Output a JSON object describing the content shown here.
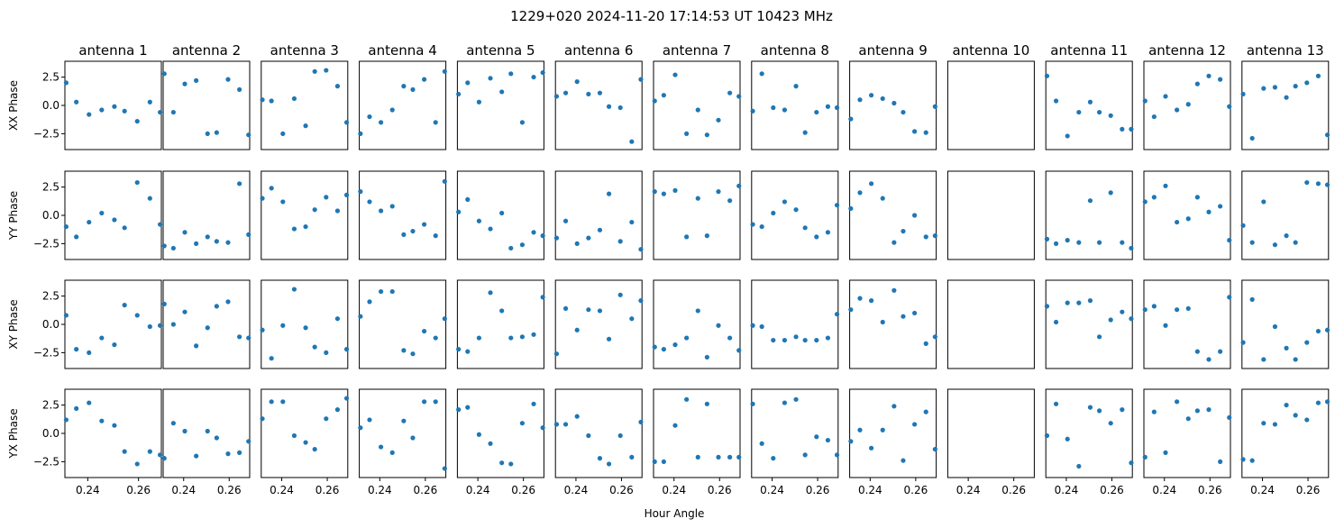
{
  "chart_data": {
    "type": "scatter",
    "title": "1229+020  2024-11-20 17:14:53 UT  10423 MHz",
    "xlabel": "Hour Angle",
    "xlim": [
      0.231,
      0.269
    ],
    "ylim": [
      -3.9,
      3.9
    ],
    "xticks": [
      0.24,
      0.26
    ],
    "xtick_labels": [
      "0.24",
      "0.26"
    ],
    "yticks": [
      2.5,
      0.0,
      -2.5
    ],
    "ytick_labels": [
      "2.5",
      "0.0",
      "−2.5"
    ],
    "x": [
      0.2315,
      0.2355,
      0.2405,
      0.2455,
      0.2505,
      0.2545,
      0.2595,
      0.2645,
      0.2685
    ],
    "point_color": "#1f77b4",
    "rows": [
      "XX Phase",
      "YY Phase",
      "XY Phase",
      "YX Phase"
    ],
    "columns": [
      "antenna 1",
      "antenna 2",
      "antenna 3",
      "antenna 4",
      "antenna 5",
      "antenna 6",
      "antenna 7",
      "antenna 8",
      "antenna 9",
      "antenna 10",
      "antenna 11",
      "antenna 12",
      "antenna 13"
    ],
    "series": {
      "XX Phase": [
        [
          2.0,
          0.3,
          -0.8,
          -0.4,
          -0.1,
          -0.5,
          -1.4,
          0.3,
          -0.6
        ],
        [
          2.8,
          -0.6,
          1.9,
          2.2,
          -2.5,
          -2.4,
          2.3,
          1.4,
          -2.6
        ],
        [
          0.5,
          0.4,
          -2.5,
          0.6,
          -1.8,
          3.0,
          3.1,
          1.7,
          -1.5
        ],
        [
          -2.5,
          -1.0,
          -1.5,
          -0.4,
          1.7,
          1.4,
          2.3,
          -1.5,
          3.0
        ],
        [
          1.0,
          2.0,
          0.3,
          2.4,
          1.2,
          2.8,
          -1.5,
          2.5,
          2.9
        ],
        [
          0.8,
          1.1,
          2.1,
          1.0,
          1.1,
          -0.1,
          -0.2,
          -3.2,
          2.3
        ],
        [
          0.4,
          0.9,
          2.7,
          -2.5,
          -0.4,
          -2.6,
          -1.3,
          1.1,
          0.8
        ],
        [
          -0.5,
          2.8,
          -0.2,
          -0.4,
          1.7,
          -2.4,
          -0.6,
          -0.1,
          -0.2
        ],
        [
          -1.2,
          0.5,
          0.9,
          0.6,
          0.2,
          -0.6,
          -2.3,
          -2.4,
          -0.1
        ],
        [],
        [
          2.6,
          0.4,
          -2.7,
          -0.6,
          0.3,
          -0.6,
          -0.9,
          -2.1,
          -2.1
        ],
        [
          0.4,
          -1.0,
          0.8,
          -0.4,
          0.1,
          1.9,
          2.6,
          2.3,
          -0.1
        ],
        [
          1.0,
          -2.9,
          1.5,
          1.6,
          0.7,
          1.7,
          2.0,
          2.6,
          -2.6
        ]
      ],
      "YY Phase": [
        [
          -1.0,
          -1.9,
          -0.6,
          0.2,
          -0.4,
          -1.1,
          2.9,
          1.5,
          -0.8
        ],
        [
          -2.7,
          -2.9,
          -1.5,
          -2.5,
          -1.9,
          -2.3,
          -2.4,
          2.8,
          -1.7
        ],
        [
          1.5,
          2.4,
          1.2,
          -1.2,
          -1.0,
          0.5,
          1.6,
          0.4,
          1.8
        ],
        [
          2.1,
          1.2,
          0.4,
          0.8,
          -1.7,
          -1.4,
          -0.8,
          -1.8,
          3.0
        ],
        [
          0.3,
          1.4,
          -0.5,
          -1.2,
          0.2,
          -2.9,
          -2.6,
          -1.5,
          -1.8
        ],
        [
          -2.0,
          -0.5,
          -2.5,
          -2.0,
          -1.3,
          1.9,
          -2.3,
          -0.6,
          -3.0
        ],
        [
          2.1,
          1.9,
          2.2,
          -1.9,
          1.5,
          -1.8,
          2.1,
          1.3,
          2.6
        ],
        [
          -0.8,
          -1.0,
          0.2,
          1.2,
          0.5,
          -1.1,
          -1.9,
          -1.5,
          0.9
        ],
        [
          0.6,
          2.0,
          2.8,
          1.5,
          -2.4,
          -1.4,
          0.0,
          -1.9,
          -1.8
        ],
        [],
        [
          -2.1,
          -2.5,
          -2.2,
          -2.4,
          1.3,
          -2.4,
          2.0,
          -2.4,
          -2.9
        ],
        [
          1.2,
          1.6,
          2.6,
          -0.6,
          -0.3,
          1.6,
          0.3,
          0.8,
          -2.2
        ],
        [
          -0.9,
          -2.4,
          1.2,
          -2.6,
          -1.8,
          -2.4,
          2.9,
          2.8,
          2.7
        ]
      ],
      "XY Phase": [
        [
          0.8,
          -2.2,
          -2.5,
          -1.2,
          -1.8,
          1.7,
          0.8,
          -0.2,
          -0.1
        ],
        [
          1.8,
          0.0,
          1.1,
          -1.9,
          -0.3,
          1.6,
          2.0,
          -1.1,
          -1.2
        ],
        [
          -0.5,
          -3.0,
          -0.1,
          3.1,
          -0.3,
          -2.0,
          -2.5,
          0.5,
          -2.2
        ],
        [
          0.7,
          2.0,
          2.9,
          2.9,
          -2.3,
          -2.6,
          -0.6,
          -1.2,
          0.5
        ],
        [
          -2.2,
          -2.4,
          -1.2,
          2.8,
          1.2,
          -1.2,
          -1.1,
          -0.9,
          2.4
        ],
        [
          -2.6,
          1.4,
          -0.5,
          1.3,
          1.2,
          -1.3,
          2.6,
          0.5,
          2.1
        ],
        [
          -2.0,
          -2.2,
          -1.8,
          -1.2,
          1.2,
          -2.9,
          -0.1,
          -1.2,
          -2.3
        ],
        [
          -0.1,
          -0.2,
          -1.4,
          -1.4,
          -1.1,
          -1.4,
          -1.4,
          -1.2,
          0.9
        ],
        [
          1.3,
          2.3,
          2.1,
          0.2,
          3.0,
          0.7,
          1.0,
          -1.7,
          -1.1
        ],
        [],
        [
          1.6,
          0.2,
          1.9,
          1.9,
          2.1,
          -1.1,
          0.4,
          1.1,
          0.5
        ],
        [
          1.3,
          1.6,
          -0.1,
          1.3,
          1.4,
          -2.4,
          -3.1,
          -2.4,
          2.4
        ],
        [
          -1.6,
          2.2,
          -3.1,
          -0.2,
          -2.1,
          -3.1,
          -1.6,
          -0.6,
          -0.5
        ]
      ],
      "YX Phase": [
        [
          1.2,
          2.2,
          2.7,
          1.1,
          0.7,
          -1.6,
          -2.7,
          -1.6,
          -1.9
        ],
        [
          -2.2,
          0.9,
          0.2,
          -2.0,
          0.2,
          -0.4,
          -1.8,
          -1.7,
          -0.7
        ],
        [
          1.3,
          2.8,
          2.8,
          -0.2,
          -0.8,
          -1.4,
          1.3,
          2.1,
          3.1
        ],
        [
          0.5,
          1.2,
          -1.2,
          -1.7,
          1.1,
          -0.4,
          2.8,
          2.8,
          -3.1
        ],
        [
          2.1,
          2.3,
          -0.1,
          -0.9,
          -2.6,
          -2.7,
          0.9,
          2.6,
          0.5
        ],
        [
          0.8,
          0.8,
          1.5,
          -0.2,
          -2.2,
          -2.7,
          -0.2,
          -2.1,
          1.0
        ],
        [
          -2.5,
          -2.5,
          0.7,
          3.0,
          -2.1,
          2.6,
          -2.1,
          -2.1,
          -2.1
        ],
        [
          2.6,
          -0.9,
          -2.2,
          2.7,
          3.0,
          -1.9,
          -0.3,
          -0.6,
          -1.9
        ],
        [
          -0.7,
          0.3,
          -1.3,
          0.3,
          2.4,
          -2.4,
          0.8,
          1.9,
          -1.4
        ],
        [],
        [
          -0.2,
          2.6,
          -0.5,
          -2.9,
          2.3,
          2.0,
          0.9,
          2.1,
          -2.6
        ],
        [
          -2.1,
          1.9,
          -1.7,
          2.8,
          1.3,
          2.0,
          2.1,
          -2.5,
          1.4
        ],
        [
          -2.3,
          -2.4,
          0.9,
          0.8,
          2.5,
          1.6,
          1.2,
          2.7,
          2.8
        ]
      ]
    }
  }
}
